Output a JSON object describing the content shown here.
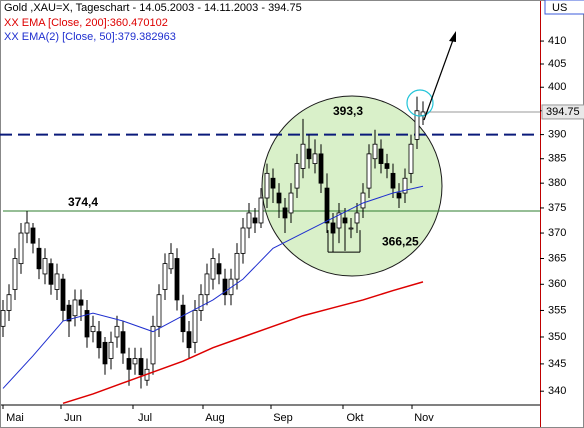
{
  "chart_data": {
    "type": "candlestick",
    "title": "Gold ,XAU=X, Tageschart - 14.05.2003 - 14.11.2003 - 394.75",
    "corner_label": "US",
    "log_scale": true,
    "grid": false,
    "ylim": [
      337.5,
      419.1
    ],
    "yticks": [
      340,
      345,
      350,
      355,
      360,
      365,
      370,
      375,
      380,
      385,
      390,
      395,
      400,
      405,
      410
    ],
    "months": [
      "Mai",
      "Jun",
      "Jul",
      "Aug",
      "Sep",
      "Okt",
      "Nov"
    ],
    "up_color": "#ffffff",
    "down_color": "#000000",
    "open": [
      352,
      355,
      359,
      364,
      370,
      371,
      367,
      362,
      364,
      359,
      361,
      356,
      354,
      357,
      355,
      351,
      351,
      349,
      346,
      350,
      351,
      346,
      345,
      346,
      342,
      345,
      352,
      359,
      363,
      365,
      356,
      351,
      349,
      355,
      358,
      361,
      364,
      361,
      358,
      361,
      366,
      371,
      373,
      372,
      377,
      381,
      378,
      375,
      374,
      379,
      383,
      387,
      384,
      386,
      379,
      372,
      371,
      373,
      371,
      372,
      375,
      379,
      385,
      387,
      384,
      382,
      378,
      378,
      382,
      389,
      394
    ],
    "high": [
      357,
      360,
      367,
      372,
      374.4,
      372,
      369,
      367,
      365,
      364,
      362,
      357,
      359,
      359,
      357,
      354,
      353,
      350,
      351,
      354,
      353,
      348,
      348,
      348,
      346,
      354,
      360,
      366,
      368,
      367,
      358,
      353,
      357,
      360,
      364,
      367,
      366,
      363,
      363,
      368,
      373,
      376,
      375,
      379,
      384,
      383,
      380,
      377,
      380,
      386,
      393.3,
      390,
      389,
      388,
      382,
      374,
      376,
      375,
      373,
      376,
      380,
      388,
      391,
      389,
      386,
      384,
      380,
      383,
      390,
      398,
      397
    ],
    "low": [
      350,
      353,
      357,
      362,
      368,
      366,
      361,
      360,
      358,
      357,
      353,
      350,
      352,
      353,
      348,
      349,
      346,
      343,
      344,
      348,
      345,
      341,
      343,
      340.5,
      341,
      343,
      350,
      357,
      362,
      355,
      349,
      346,
      347,
      353,
      356,
      359,
      360,
      356,
      356,
      359,
      364,
      369,
      370,
      371,
      375,
      376,
      373,
      370,
      372,
      377,
      381,
      383,
      382,
      378,
      370,
      366.25,
      368,
      366.5,
      369,
      370,
      373,
      377,
      383,
      382,
      381,
      377,
      375,
      376,
      380,
      387,
      392
    ],
    "close": [
      355,
      358,
      365,
      370,
      372,
      368,
      363,
      365,
      360,
      362,
      355,
      353,
      357,
      356,
      350,
      352,
      348,
      345,
      349,
      352,
      347,
      344,
      346,
      343,
      344,
      352,
      358,
      364,
      366,
      357,
      351,
      348,
      355,
      358,
      362,
      365,
      362,
      358,
      361,
      366,
      371,
      374,
      372,
      377,
      382,
      379,
      376,
      373,
      378,
      384,
      388,
      385,
      386,
      380,
      372,
      370,
      374,
      372,
      371,
      374,
      378,
      386,
      388,
      384,
      383,
      379,
      377,
      381,
      388,
      395,
      394.75
    ],
    "series": [
      {
        "name": "XX EMA [Close, 200]:360.470102",
        "color": "#dd0000",
        "values": [
          null,
          null,
          337.8,
          339.5,
          341.5,
          343.5,
          345.5,
          348,
          350,
          352,
          354,
          355.5,
          357,
          358.8,
          360.47
        ]
      },
      {
        "name": "XX EMA(2) [Close, 50]:379.382963",
        "color": "#1f2fcf",
        "values": [
          340.5,
          346.5,
          353,
          354.5,
          353,
          351,
          354,
          357,
          361,
          367,
          370,
          373,
          376,
          378,
          379.38
        ]
      }
    ],
    "hlines": [
      {
        "value": 374.4,
        "color": "#2e7d2e",
        "dashed": false
      },
      {
        "value": 390,
        "color": "#0a1a7a",
        "dashed": true
      }
    ],
    "annotations": [
      {
        "value": 374.4,
        "label": "374,4"
      },
      {
        "value": 393.3,
        "label": "393,3"
      },
      {
        "value": 366.25,
        "label": "366,25"
      }
    ]
  }
}
